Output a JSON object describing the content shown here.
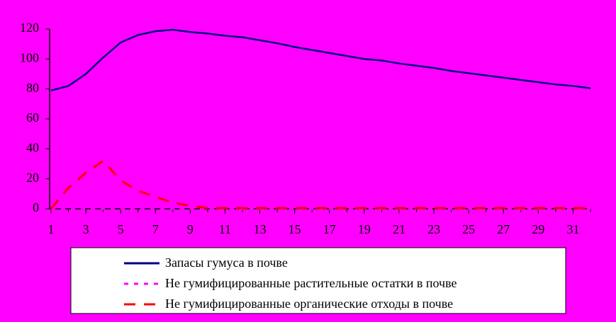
{
  "chart_data": {
    "type": "line",
    "x": [
      1,
      2,
      3,
      4,
      5,
      6,
      7,
      8,
      9,
      10,
      11,
      12,
      13,
      14,
      15,
      16,
      17,
      18,
      19,
      20,
      21,
      22,
      23,
      24,
      25,
      26,
      27,
      28,
      29,
      30,
      31,
      32
    ],
    "xlim": [
      1,
      32
    ],
    "xticks": [
      1,
      3,
      5,
      7,
      9,
      11,
      13,
      15,
      17,
      19,
      21,
      23,
      25,
      27,
      29,
      31
    ],
    "ylim": [
      0,
      120
    ],
    "yticks": [
      0,
      20,
      40,
      60,
      80,
      100,
      120
    ],
    "legend": "bottom",
    "series": [
      {
        "name": "Запасы гумуса в почве",
        "color": "#000080",
        "dash": "solid",
        "values": [
          79,
          82,
          90,
          101,
          111,
          116,
          118.5,
          119.5,
          118,
          117,
          115.5,
          114.5,
          112.5,
          110.5,
          108,
          106,
          104,
          102,
          100,
          99,
          97,
          95.5,
          94,
          92,
          90.5,
          89,
          87.5,
          86,
          84.5,
          83,
          82,
          80.5
        ]
      },
      {
        "name": "Не гумифицированные растительные остатки в почве",
        "color": "#ff00ff",
        "dash": "dotted",
        "values": [
          0,
          0,
          0,
          0,
          0,
          0,
          0,
          0,
          0,
          0,
          0,
          0,
          0,
          0,
          0,
          0,
          0,
          0,
          0,
          0,
          0,
          0,
          0,
          0,
          0,
          0,
          0,
          0,
          0,
          0,
          0,
          0
        ]
      },
      {
        "name": "Не гумифицированные органические отходы в почве",
        "color": "#ff0000",
        "dash": "dashed",
        "values": [
          0,
          14,
          24,
          32,
          19,
          12,
          8,
          4,
          2,
          0.5,
          0.5,
          0.5,
          0.5,
          0.5,
          0.5,
          0.5,
          0.5,
          0.5,
          0.5,
          0.5,
          0.5,
          0.5,
          0.5,
          0.5,
          0.5,
          0.5,
          0.5,
          0.5,
          0.5,
          0.5,
          0.5,
          0.5
        ]
      }
    ]
  }
}
